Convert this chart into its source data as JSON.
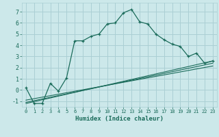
{
  "xlabel": "Humidex (Indice chaleur)",
  "bg_color": "#cce8ea",
  "grid_color": "#aacfd4",
  "line_color": "#1a6b5a",
  "xlim": [
    -0.5,
    23.5
  ],
  "ylim": [
    -1.5,
    7.8
  ],
  "yticks": [
    -1,
    0,
    1,
    2,
    3,
    4,
    5,
    6,
    7
  ],
  "xticks": [
    0,
    1,
    2,
    3,
    4,
    5,
    6,
    7,
    8,
    9,
    10,
    11,
    12,
    13,
    14,
    15,
    16,
    17,
    18,
    19,
    20,
    21,
    22,
    23
  ],
  "xtick_labels": [
    "0",
    "1",
    "2",
    "3",
    "4",
    "5",
    "6",
    "7",
    "8",
    "9",
    "10",
    "11",
    "12",
    "13",
    "14",
    "15",
    "16",
    "17",
    "18",
    "19",
    "20",
    "21",
    "22",
    "23"
  ],
  "series1_x": [
    0,
    1,
    2,
    3,
    4,
    5,
    6,
    7,
    8,
    9,
    10,
    11,
    12,
    13,
    14,
    15,
    16,
    17,
    18,
    19,
    20,
    21,
    22,
    23
  ],
  "series1_y": [
    0.2,
    -1.2,
    -1.2,
    0.6,
    -0.1,
    1.1,
    4.4,
    4.4,
    4.8,
    5.0,
    5.9,
    6.0,
    6.9,
    7.2,
    6.1,
    5.9,
    5.0,
    4.5,
    4.1,
    3.9,
    3.0,
    3.3,
    2.4,
    2.6
  ],
  "series2_x": [
    0,
    23
  ],
  "series2_y": [
    -1.2,
    2.6
  ],
  "series3_x": [
    0,
    23
  ],
  "series3_y": [
    -1.1,
    2.4
  ],
  "series4_x": [
    0,
    23
  ],
  "series4_y": [
    -0.9,
    2.15
  ]
}
